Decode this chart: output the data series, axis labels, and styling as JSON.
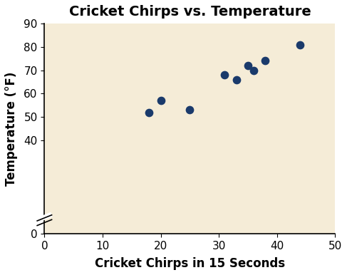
{
  "title": "Cricket Chirps vs. Temperature",
  "xlabel": "Cricket Chirps in 15 Seconds",
  "ylabel": "Temperature (°F)",
  "x_data": [
    18,
    20,
    25,
    31,
    33,
    35,
    36,
    38,
    44
  ],
  "y_data": [
    52,
    57,
    53,
    68,
    66,
    72,
    70,
    74,
    81
  ],
  "xlim": [
    0,
    50
  ],
  "ylim": [
    0,
    90
  ],
  "xticks": [
    0,
    10,
    20,
    30,
    40,
    50
  ],
  "yticks": [
    0,
    40,
    50,
    60,
    70,
    80,
    90
  ],
  "dot_color": "#1a3a6b",
  "axes_background": "#f5ecd7",
  "figure_background": "#ffffff",
  "dot_size": 55,
  "title_fontsize": 14,
  "label_fontsize": 12,
  "tick_fontsize": 11
}
